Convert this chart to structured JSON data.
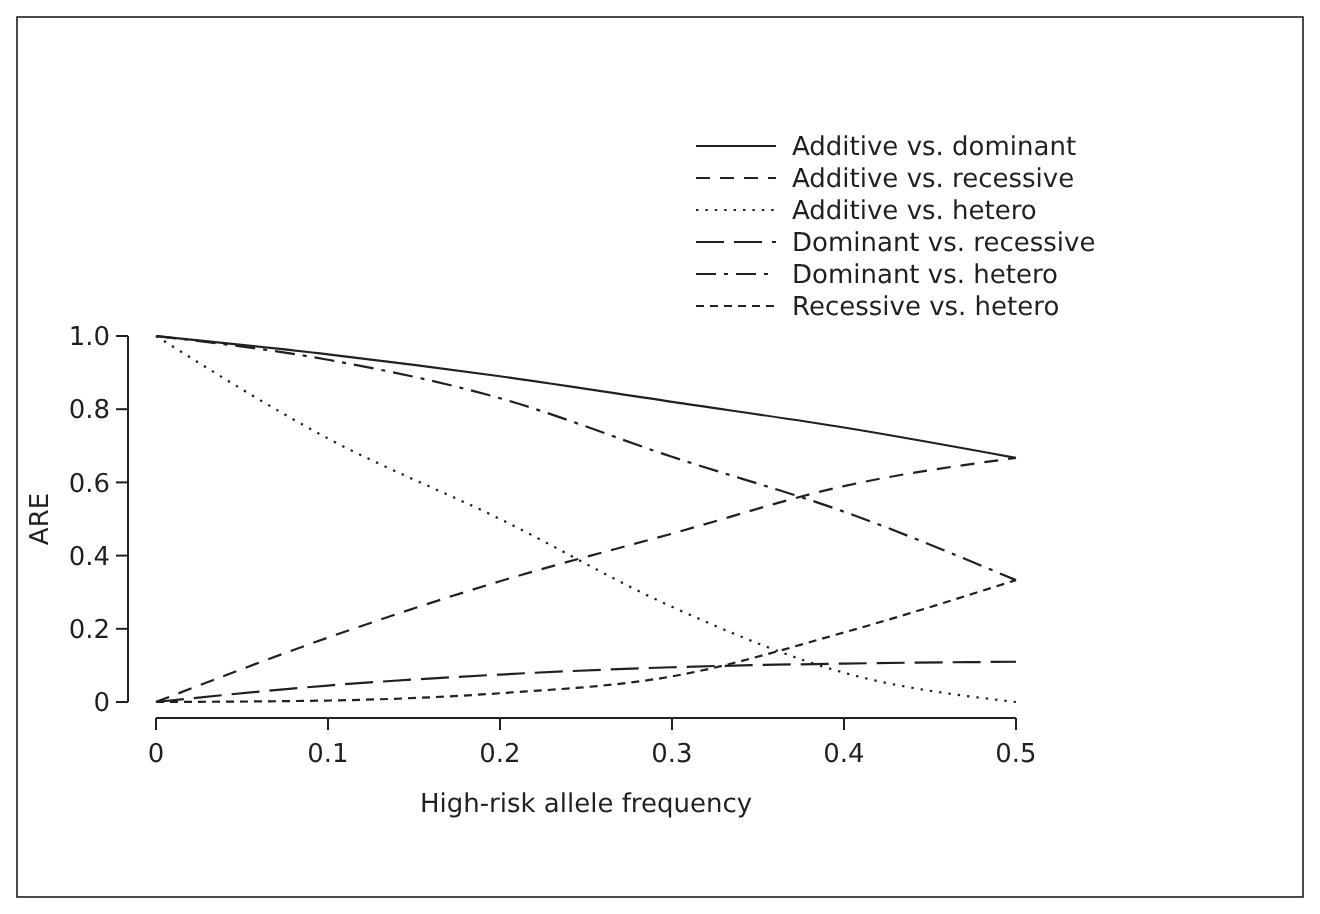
{
  "chart_data": {
    "type": "line",
    "xlabel": "High-risk allele frequency",
    "ylabel": "ARE",
    "x": [
      0,
      0.1,
      0.2,
      0.3,
      0.4,
      0.5
    ],
    "xlim": [
      0,
      0.5
    ],
    "xticks": [
      0,
      0.1,
      0.2,
      0.3,
      0.4,
      0.5
    ],
    "ylim": [
      0,
      1
    ],
    "yticks": [
      0,
      0.2,
      0.4,
      0.6,
      0.8,
      {
        "value": 1,
        "label": "1.0"
      }
    ],
    "grid": false,
    "legend": "top right",
    "marker": "none",
    "series": [
      {
        "name": "Additive vs. dominant",
        "color": "#231f20",
        "line_style": "solid",
        "values": [
          1,
          0.95,
          0.89,
          0.82,
          0.75,
          0.667
        ]
      },
      {
        "name": "Additive vs. recessive",
        "color": "#231f20",
        "line_style": "dashed",
        "values": [
          0,
          0.176,
          0.33,
          0.46,
          0.59,
          0.667
        ]
      },
      {
        "name": "Additive vs. hetero",
        "color": "#231f20",
        "line_style": "dotted",
        "values": [
          1,
          0.72,
          0.5,
          0.26,
          0.08,
          0
        ]
      },
      {
        "name": "Dominant vs. recessive",
        "color": "#231f20",
        "line_style": "longdash",
        "values": [
          0,
          0.045,
          0.075,
          0.095,
          0.105,
          0.11
        ]
      },
      {
        "name": "Dominant vs. hetero",
        "color": "#231f20",
        "line_style": "dashdot",
        "values": [
          1,
          0.935,
          0.83,
          0.67,
          0.52,
          0.333
        ]
      },
      {
        "name": "Recessive vs. hetero",
        "color": "#231f20",
        "line_style": "shortdash",
        "values": [
          0,
          0.004,
          0.024,
          0.07,
          0.19,
          0.333
        ]
      }
    ]
  }
}
